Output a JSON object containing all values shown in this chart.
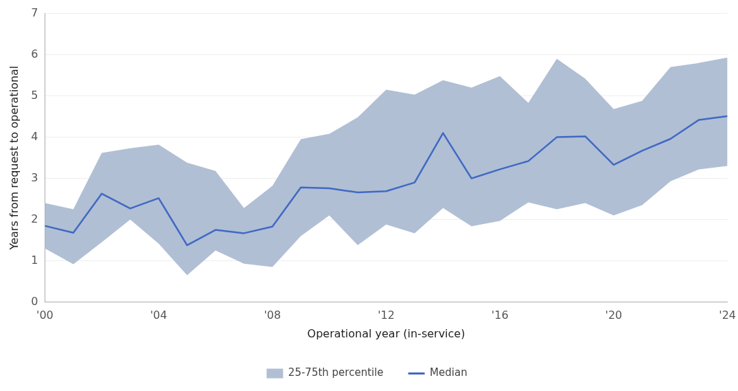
{
  "chart_data": {
    "type": "line",
    "xlabel": "Operational year (in-service)",
    "ylabel": "Years from request to operational",
    "x": [
      2000,
      2001,
      2002,
      2003,
      2004,
      2005,
      2006,
      2007,
      2008,
      2009,
      2010,
      2011,
      2012,
      2013,
      2014,
      2015,
      2016,
      2017,
      2018,
      2019,
      2020,
      2021,
      2022,
      2023,
      2024
    ],
    "series": [
      {
        "name": "25-75th percentile",
        "type": "area",
        "color": "#b0bfd4",
        "values": [
          null,
          null,
          null,
          null,
          null,
          null,
          null,
          null,
          null,
          null,
          null,
          null,
          null,
          null,
          null,
          null,
          null,
          null,
          null,
          null,
          null,
          null,
          null,
          null,
          null
        ]
      },
      {
        "name": "Median",
        "type": "line",
        "color": "#4169c4",
        "values": [
          1.85,
          1.68,
          2.63,
          2.27,
          2.52,
          1.38,
          1.75,
          1.67,
          1.83,
          2.78,
          2.76,
          2.66,
          2.69,
          2.9,
          4.1,
          3.0,
          3.22,
          3.42,
          4.0,
          4.02,
          3.33,
          3.67,
          3.96,
          4.42,
          4.51
        ],
        "lower": [
          1.3,
          0.92,
          1.45,
          2.0,
          1.42,
          0.65,
          1.25,
          0.93,
          0.85,
          1.6,
          2.1,
          1.38,
          1.88,
          1.67,
          2.28,
          1.84,
          1.97,
          2.42,
          2.25,
          2.4,
          2.1,
          2.35,
          2.93,
          3.22,
          3.3
        ],
        "upper": [
          2.4,
          2.25,
          3.62,
          3.73,
          3.82,
          3.38,
          3.18,
          2.28,
          2.82,
          3.95,
          4.08,
          4.48,
          5.15,
          5.03,
          5.38,
          5.2,
          5.48,
          4.83,
          5.9,
          5.42,
          4.68,
          4.88,
          5.7,
          5.8,
          5.93
        ]
      }
    ],
    "xlim": [
      2000,
      2024
    ],
    "xticks": [
      {
        "value": 2000,
        "label": "'00"
      },
      {
        "value": 2004,
        "label": "'04"
      },
      {
        "value": 2008,
        "label": "'08"
      },
      {
        "value": 2012,
        "label": "'12"
      },
      {
        "value": 2016,
        "label": "'16"
      },
      {
        "value": 2020,
        "label": "'20"
      },
      {
        "value": 2024,
        "label": "'24"
      }
    ],
    "ylim": [
      0,
      7
    ],
    "yticks": [
      0,
      1,
      2,
      3,
      4,
      5,
      6,
      7
    ],
    "grid": "y",
    "legend": "bottom",
    "marker": "none",
    "line_style": "solid"
  }
}
